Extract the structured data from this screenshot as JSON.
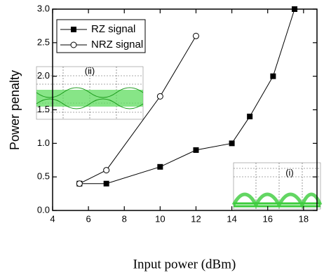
{
  "chart_data": {
    "type": "line",
    "x_label": "Input power (dBm)",
    "y_label": "Power penalty",
    "xlim": [
      4,
      18.75
    ],
    "ylim": [
      0,
      3
    ],
    "xticks": [
      4,
      6,
      8,
      10,
      12,
      14,
      16,
      18
    ],
    "yticks": [
      {
        "value": 0,
        "label": "0.0"
      },
      0.5,
      {
        "value": 1,
        "label": "1.0"
      },
      1.5,
      {
        "value": 2,
        "label": "2.0"
      },
      2.5,
      {
        "value": 3,
        "label": "3.0"
      }
    ],
    "legend": "upper left",
    "series": [
      {
        "name": "RZ signal",
        "color": "#000000",
        "marker": "square",
        "x": [
          5.5,
          7,
          10,
          12,
          14,
          15,
          16.3,
          17.5
        ],
        "values": [
          0.4,
          0.4,
          0.65,
          0.9,
          1.0,
          1.4,
          2.0,
          3.0
        ]
      },
      {
        "name": "NRZ signal",
        "color": "#000000",
        "marker": "circle",
        "x": [
          5.5,
          7,
          10,
          12
        ],
        "values": [
          0.4,
          0.6,
          1.7,
          2.6
        ]
      }
    ],
    "annotations": [
      "(ii)",
      "(i)"
    ]
  }
}
